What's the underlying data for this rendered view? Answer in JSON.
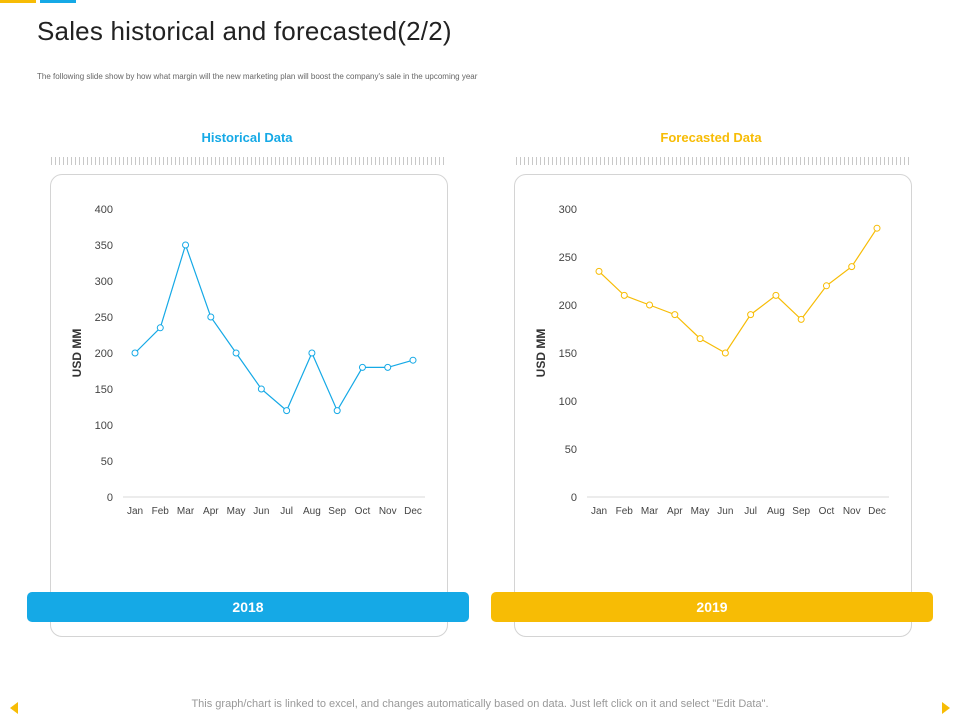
{
  "header": {
    "title": "Sales historical and forecasted(2/2)",
    "subtitle": "The following slide show by how what margin will the new marketing plan will boost the company's sale in the upcoming year"
  },
  "colors": {
    "historical": "#15a9e6",
    "forecast": "#f7bc05",
    "accent_orange": "#f7bc05",
    "accent_blue": "#15a9e6"
  },
  "panels": {
    "historical": {
      "title": "Historical Data",
      "year": "2018"
    },
    "forecast": {
      "title": "Forecasted Data",
      "year": "2019"
    }
  },
  "chart_data": [
    {
      "type": "line",
      "title": "Historical Data",
      "xlabel": "",
      "ylabel": "USD MM",
      "categories": [
        "Jan",
        "Feb",
        "Mar",
        "Apr",
        "May",
        "Jun",
        "Jul",
        "Aug",
        "Sep",
        "Oct",
        "Nov",
        "Dec"
      ],
      "values": [
        200,
        235,
        350,
        250,
        200,
        150,
        120,
        200,
        120,
        180,
        180,
        190
      ],
      "ylim": [
        0,
        400
      ],
      "yticks": [
        0,
        50,
        100,
        150,
        200,
        250,
        300,
        350,
        400
      ],
      "grid": false,
      "color": "#15a9e6"
    },
    {
      "type": "line",
      "title": "Forecasted Data",
      "xlabel": "",
      "ylabel": "USD MM",
      "categories": [
        "Jan",
        "Feb",
        "Mar",
        "Apr",
        "May",
        "Jun",
        "Jul",
        "Aug",
        "Sep",
        "Oct",
        "Nov",
        "Dec"
      ],
      "values": [
        235,
        210,
        200,
        190,
        165,
        150,
        190,
        210,
        185,
        220,
        240,
        280
      ],
      "ylim": [
        0,
        300
      ],
      "yticks": [
        0,
        50,
        100,
        150,
        200,
        250,
        300
      ],
      "grid": false,
      "color": "#f7bc05"
    }
  ],
  "footer": {
    "note": "This graph/chart is linked to excel, and changes automatically based on data. Just left click on it and select \"Edit Data\"."
  }
}
